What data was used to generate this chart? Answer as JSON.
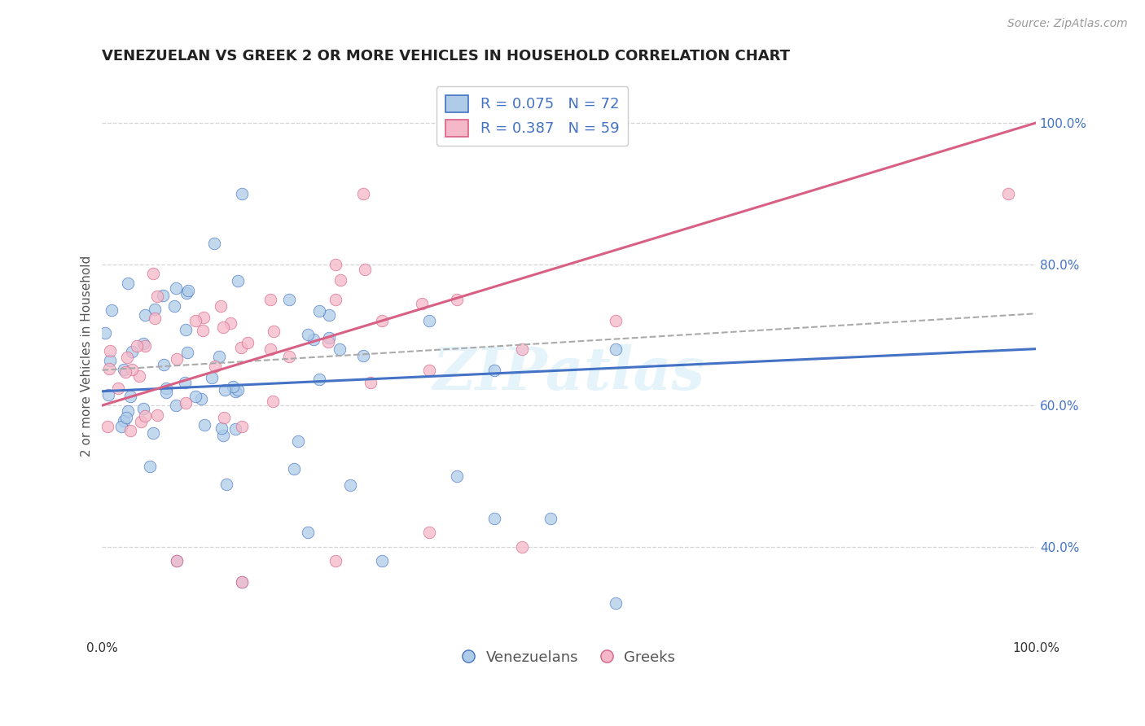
{
  "title": "VENEZUELAN VS GREEK 2 OR MORE VEHICLES IN HOUSEHOLD CORRELATION CHART",
  "source": "Source: ZipAtlas.com",
  "ylabel": "2 or more Vehicles in Household",
  "xlim": [
    0,
    100
  ],
  "ylim": [
    27,
    107
  ],
  "yticks": [
    40,
    60,
    80,
    100
  ],
  "color_blue": "#aecce8",
  "color_pink": "#f5b8c8",
  "trendline_blue": "#4472c4",
  "trendline_pink": "#d96085",
  "trendline_dashed": "#aaaaaa",
  "background": "#ffffff",
  "grid_color": "#cccccc",
  "watermark": "ZIPatlas",
  "title_fontsize": 13,
  "axis_label_fontsize": 11,
  "tick_fontsize": 11,
  "legend_fontsize": 13,
  "source_fontsize": 10,
  "ven_trend_start_y": 62,
  "ven_trend_end_y": 68,
  "greek_trend_start_y": 60,
  "greek_trend_end_y": 100,
  "dashed_start_y": 65,
  "dashed_end_y": 73
}
